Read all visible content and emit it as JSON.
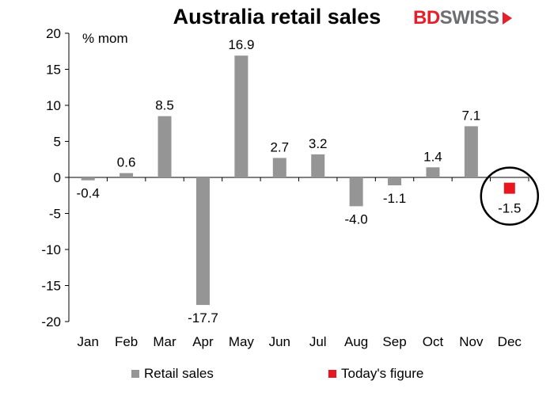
{
  "title": "Australia retail sales",
  "logo": {
    "part1": "BD",
    "part2": "SWISS"
  },
  "colors": {
    "bar": "#959595",
    "today": "#e8161f",
    "circle": "#000000"
  },
  "chart_data": {
    "type": "bar",
    "title": "Australia retail sales",
    "unit_label": "% mom",
    "categories": [
      "Jan",
      "Feb",
      "Mar",
      "Apr",
      "May",
      "Jun",
      "Jul",
      "Aug",
      "Sep",
      "Oct",
      "Nov",
      "Dec"
    ],
    "series": [
      {
        "name": "Retail sales",
        "values": [
          -0.4,
          0.6,
          8.5,
          -17.7,
          16.9,
          2.7,
          3.2,
          -4.0,
          -1.1,
          1.4,
          7.1,
          null
        ]
      },
      {
        "name": "Today's figure",
        "values": [
          null,
          null,
          null,
          null,
          null,
          null,
          null,
          null,
          null,
          null,
          null,
          -1.5
        ]
      }
    ],
    "data_labels": [
      "-0.4",
      "0.6",
      "8.5",
      "-17.7",
      "16.9",
      "2.7",
      "3.2",
      "-4.0",
      "-1.1",
      "1.4",
      "7.1",
      "-1.5"
    ],
    "ylim": [
      -20,
      20
    ],
    "yticks": [
      -20,
      -15,
      -10,
      -5,
      0,
      5,
      10,
      15,
      20
    ],
    "legend": "bottom",
    "grid": false,
    "highlight": "Dec"
  }
}
